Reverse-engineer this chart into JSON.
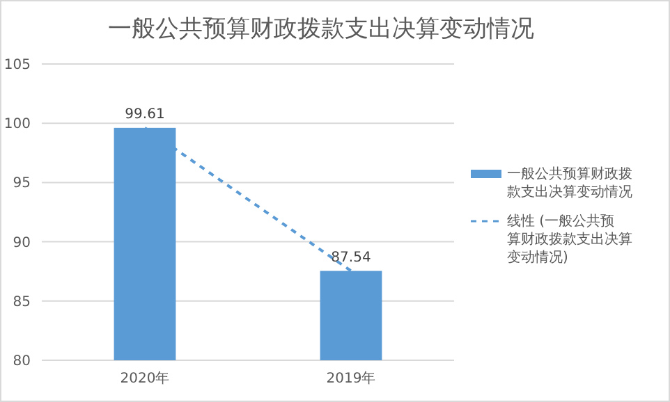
{
  "chart_data": {
    "type": "bar",
    "title": "一般公共预算财政拨款支出决算变动情况",
    "categories": [
      "2020年",
      "2019年"
    ],
    "series": [
      {
        "name": "一般公共预算财政拨款支出决算变动情况",
        "color": "#5b9bd5",
        "values": [
          99.61,
          87.54
        ],
        "value_labels": [
          "99.61",
          "87.54"
        ]
      },
      {
        "name": "线性 (一般公共预算财政拨款支出决算变动情况)",
        "type": "line",
        "color": "#5b9bd5",
        "line_style": "dashed",
        "marker": "none",
        "values": [
          99.61,
          87.54
        ]
      }
    ],
    "ylim": [
      80,
      105
    ],
    "yticks": [
      80,
      85,
      90,
      95,
      100,
      105
    ],
    "grid": "y",
    "legend": "right"
  }
}
